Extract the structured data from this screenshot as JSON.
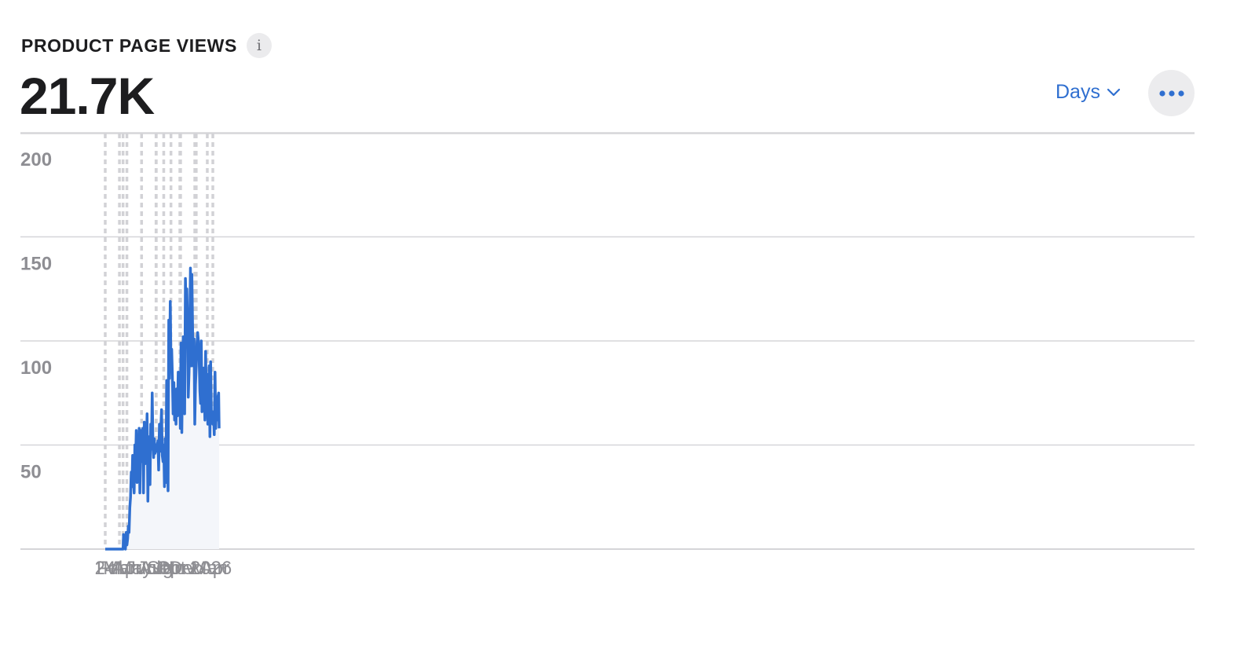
{
  "header": {
    "title": "PRODUCT PAGE VIEWS",
    "info_glyph": "i",
    "total_value": "21.7K",
    "period_label": "Days"
  },
  "icons": {
    "info": "info-icon",
    "chevron": "chevron-down-icon",
    "more": "more-horizontal-icon"
  },
  "colors": {
    "line": "#2f6fd0",
    "accent": "#2f6fd0",
    "text": "#1d1d1f",
    "muted": "#8e8e93"
  },
  "chart_data": {
    "type": "area",
    "title": "PRODUCT PAGE VIEWS",
    "xlabel": "",
    "ylabel": "",
    "ylim": [
      0,
      200
    ],
    "yticks": [
      50,
      100,
      150,
      200
    ],
    "grid": true,
    "x_tick_labels": [
      "24",
      "Feb",
      "Mar",
      "Apr",
      "May",
      "Jun",
      "Jul",
      "Aug",
      "Sep",
      "Oct",
      "Nov",
      "Dec",
      "Jan 2026",
      "Mar",
      "Apr"
    ],
    "x_tick_dates": [
      "2025-01-01",
      "2025-02-01",
      "2025-03-01",
      "2025-04-01",
      "2025-05-01",
      "2025-06-01",
      "2025-07-01",
      "2025-08-01",
      "2025-09-01",
      "2025-10-01",
      "2025-11-01",
      "2025-12-01",
      "2026-01-01",
      "2026-03-01",
      "2026-04-01"
    ],
    "series": [
      {
        "values_approx": "daily page views",
        "x": [
          "2025-01-01",
          "2025-03-16",
          "2025-03-18",
          "2025-03-20",
          "2025-03-23",
          "2025-03-26",
          "2025-03-29",
          "2025-04-01",
          "2025-04-04",
          "2025-04-07",
          "2025-04-10",
          "2025-04-13",
          "2025-04-16",
          "2025-04-19",
          "2025-04-22",
          "2025-04-25",
          "2025-04-28",
          "2025-05-01",
          "2025-05-04",
          "2025-05-07",
          "2025-05-10",
          "2025-05-13",
          "2025-05-16",
          "2025-05-19",
          "2025-05-22",
          "2025-05-25",
          "2025-05-28",
          "2025-05-31",
          "2025-06-03",
          "2025-06-06",
          "2025-06-09",
          "2025-06-12",
          "2025-06-15",
          "2025-06-18",
          "2025-06-21",
          "2025-06-24",
          "2025-06-27",
          "2025-06-30",
          "2025-07-03",
          "2025-07-06",
          "2025-07-09",
          "2025-07-12",
          "2025-07-15",
          "2025-07-18",
          "2025-07-21",
          "2025-07-24",
          "2025-07-27",
          "2025-07-30",
          "2025-08-02",
          "2025-08-05",
          "2025-08-08",
          "2025-08-11",
          "2025-08-14",
          "2025-08-17",
          "2025-08-20",
          "2025-08-23",
          "2025-08-26",
          "2025-08-29",
          "2025-09-01",
          "2025-09-04",
          "2025-09-07",
          "2025-09-10",
          "2025-09-13",
          "2025-09-16",
          "2025-09-19",
          "2025-09-20",
          "2025-09-22",
          "2025-09-25",
          "2025-09-28",
          "2025-10-01",
          "2025-10-04",
          "2025-10-07",
          "2025-10-10",
          "2025-10-13",
          "2025-10-16",
          "2025-10-19",
          "2025-10-22",
          "2025-10-25",
          "2025-10-28",
          "2025-10-31",
          "2025-11-03",
          "2025-11-06",
          "2025-11-09",
          "2025-11-12",
          "2025-11-15",
          "2025-11-18",
          "2025-11-21",
          "2025-11-24",
          "2025-11-27",
          "2025-11-30",
          "2025-12-03",
          "2025-12-06",
          "2025-12-09",
          "2025-12-12",
          "2025-12-15",
          "2025-12-18",
          "2025-12-21",
          "2025-12-24",
          "2025-12-27",
          "2025-12-30",
          "2026-01-02",
          "2026-01-05",
          "2026-01-08",
          "2026-01-11",
          "2026-01-14",
          "2026-01-17",
          "2026-01-20",
          "2026-01-23",
          "2026-01-26",
          "2026-01-29",
          "2026-02-01",
          "2026-02-04",
          "2026-02-07",
          "2026-02-10",
          "2026-02-13",
          "2026-02-16",
          "2026-02-19",
          "2026-02-22",
          "2026-02-25",
          "2026-02-28",
          "2026-03-03",
          "2026-03-06",
          "2026-03-09",
          "2026-03-12",
          "2026-03-15",
          "2026-03-18",
          "2026-03-21",
          "2026-03-24",
          "2026-03-27",
          "2026-03-30",
          "2026-04-02",
          "2026-04-05",
          "2026-04-08",
          "2026-04-11",
          "2026-04-14",
          "2026-04-17",
          "2026-04-19"
        ],
        "y": [
          0,
          0,
          7,
          3,
          2,
          0,
          8,
          2,
          5,
          11,
          8,
          20,
          25,
          37,
          30,
          45,
          35,
          27,
          50,
          40,
          57,
          32,
          49,
          40,
          58,
          27,
          57,
          42,
          51,
          58,
          27,
          61,
          41,
          58,
          49,
          65,
          23,
          54,
          50,
          31,
          60,
          48,
          75,
          51,
          44,
          53,
          46,
          50,
          47,
          50,
          52,
          38,
          60,
          47,
          58,
          67,
          45,
          42,
          50,
          30,
          53,
          32,
          81,
          47,
          28,
          60,
          110,
          82,
          119,
          88,
          96,
          83,
          65,
          80,
          62,
          74,
          60,
          77,
          64,
          85,
          80,
          80,
          58,
          99,
          56,
          87,
          102,
          81,
          65,
          130,
          115,
          125,
          108,
          73,
          85,
          106,
          135,
          88,
          132,
          104,
          88,
          101,
          60,
          79,
          88,
          99,
          104,
          100,
          93,
          76,
          70,
          100,
          66,
          74,
          87,
          78,
          62,
          95,
          75,
          84,
          60,
          68,
          88,
          54,
          90,
          63,
          66,
          60,
          65,
          55,
          85,
          58,
          68,
          62,
          73,
          75,
          58
        ]
      }
    ]
  }
}
